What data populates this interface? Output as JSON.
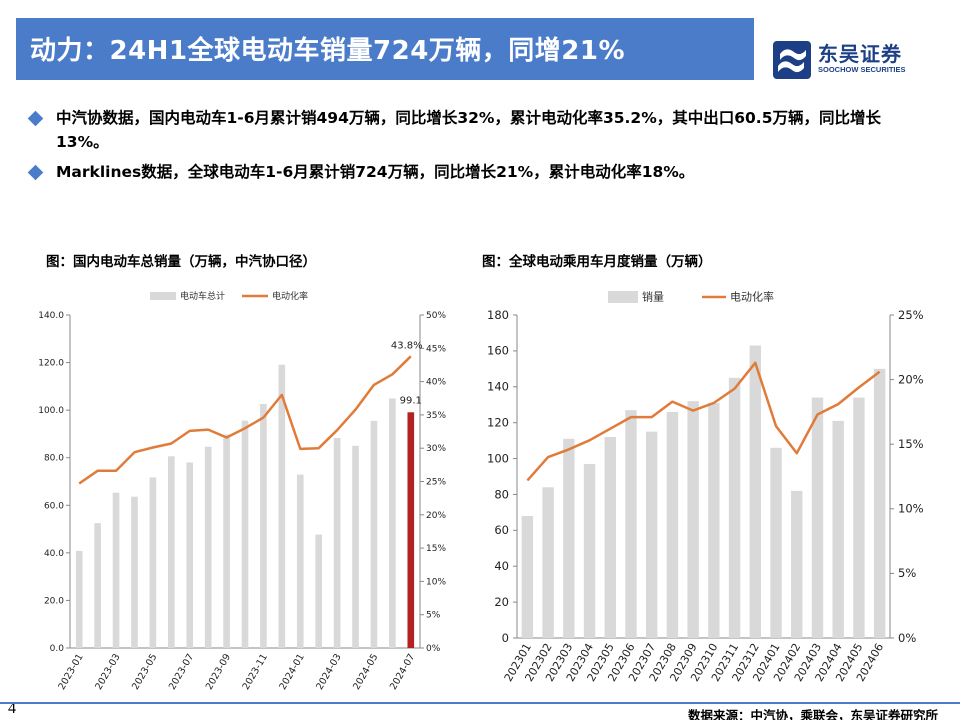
{
  "header": {
    "title": "动力：24H1全球电动车销量724万辆，同增21%",
    "logo_cn": "东吴证券",
    "logo_en": "SOOCHOW SECURITIES"
  },
  "bullets": [
    "中汽协数据，国内电动车1-6月累计销494万辆，同比增长32%，累计电动化率35.2%，其中出口60.5万辆，同比增长13%。",
    "Marklines数据，全球电动车1-6月累计销724万辆，同比增长21%，累计电动化率18%。"
  ],
  "footer": {
    "page_number": "4",
    "source": "数据来源：中汽协，乘联会，东吴证券研究所"
  },
  "colors": {
    "title_bar": "#4a7cc9",
    "bar": "#d9d9d9",
    "highlight_bar": "#b22222",
    "line": "#e07b39"
  },
  "chart_data": [
    {
      "type": "bar",
      "title": "图：国内电动车总销量（万辆，中汽协口径）",
      "legend": [
        "电动车总计",
        "电动化率"
      ],
      "legend_position": "top",
      "categories": [
        "2023-01",
        "2023-02",
        "2023-03",
        "2023-04",
        "2023-05",
        "2023-06",
        "2023-07",
        "2023-08",
        "2023-09",
        "2023-10",
        "2023-11",
        "2023-12",
        "2024-01",
        "2024-02",
        "2024-03",
        "2024-04",
        "2024-05",
        "2024-06",
        "2024-07"
      ],
      "tick_labels": [
        "2023-01",
        "2023-03",
        "2023-05",
        "2023-07",
        "2023-09",
        "2023-11",
        "2024-01",
        "2024-03",
        "2024-05",
        "2024-07"
      ],
      "series": [
        {
          "name": "电动车总计",
          "type": "bar",
          "axis": "left",
          "values": [
            40.8,
            52.5,
            65.3,
            63.6,
            71.7,
            80.6,
            78.0,
            84.6,
            89.7,
            95.6,
            102.6,
            119.1,
            72.9,
            47.7,
            88.3,
            85.0,
            95.5,
            104.9,
            99.1
          ]
        },
        {
          "name": "电动化率",
          "type": "line",
          "axis": "right",
          "values": [
            24.7,
            26.6,
            26.6,
            29.4,
            30.1,
            30.7,
            32.6,
            32.8,
            31.6,
            33.0,
            34.6,
            38.0,
            29.9,
            30.0,
            32.7,
            35.8,
            39.5,
            41.1,
            43.8
          ]
        }
      ],
      "highlight_index": 18,
      "data_labels": [
        "99.1",
        "43.8%"
      ],
      "y_left": {
        "min": 0,
        "max": 140,
        "ticks": [
          "0.0",
          "20.0",
          "40.0",
          "60.0",
          "80.0",
          "100.0",
          "120.0",
          "140.0"
        ]
      },
      "y_right": {
        "min": 0,
        "max": 50,
        "ticks": [
          "0%",
          "5%",
          "10%",
          "15%",
          "20%",
          "25%",
          "30%",
          "35%",
          "40%",
          "45%",
          "50%"
        ]
      },
      "grid": false
    },
    {
      "type": "bar",
      "title": "图：全球电动乘用车月度销量（万辆）",
      "legend": [
        "销量",
        "电动化率"
      ],
      "legend_position": "top",
      "categories": [
        "202301",
        "202302",
        "202303",
        "202304",
        "202305",
        "202306",
        "202307",
        "202308",
        "202309",
        "202310",
        "202311",
        "202312",
        "202401",
        "202402",
        "202403",
        "202404",
        "202405",
        "202406"
      ],
      "series": [
        {
          "name": "销量",
          "type": "bar",
          "axis": "left",
          "values": [
            68,
            84,
            111,
            97,
            112,
            127,
            115,
            126,
            132,
            131,
            145,
            163,
            106,
            82,
            134,
            121,
            134,
            150
          ]
        },
        {
          "name": "电动化率",
          "type": "line",
          "axis": "right",
          "values": [
            12.2,
            14.0,
            14.6,
            15.3,
            16.2,
            17.1,
            17.1,
            18.3,
            17.6,
            18.2,
            19.3,
            21.3,
            16.4,
            14.3,
            17.3,
            18.1,
            19.4,
            20.6
          ]
        }
      ],
      "y_left": {
        "min": 0,
        "max": 180,
        "ticks": [
          "0",
          "20",
          "40",
          "60",
          "80",
          "100",
          "120",
          "140",
          "160",
          "180"
        ]
      },
      "y_right": {
        "min": 0,
        "max": 25,
        "ticks": [
          "0%",
          "5%",
          "10%",
          "15%",
          "20%",
          "25%"
        ]
      },
      "grid": false
    }
  ]
}
